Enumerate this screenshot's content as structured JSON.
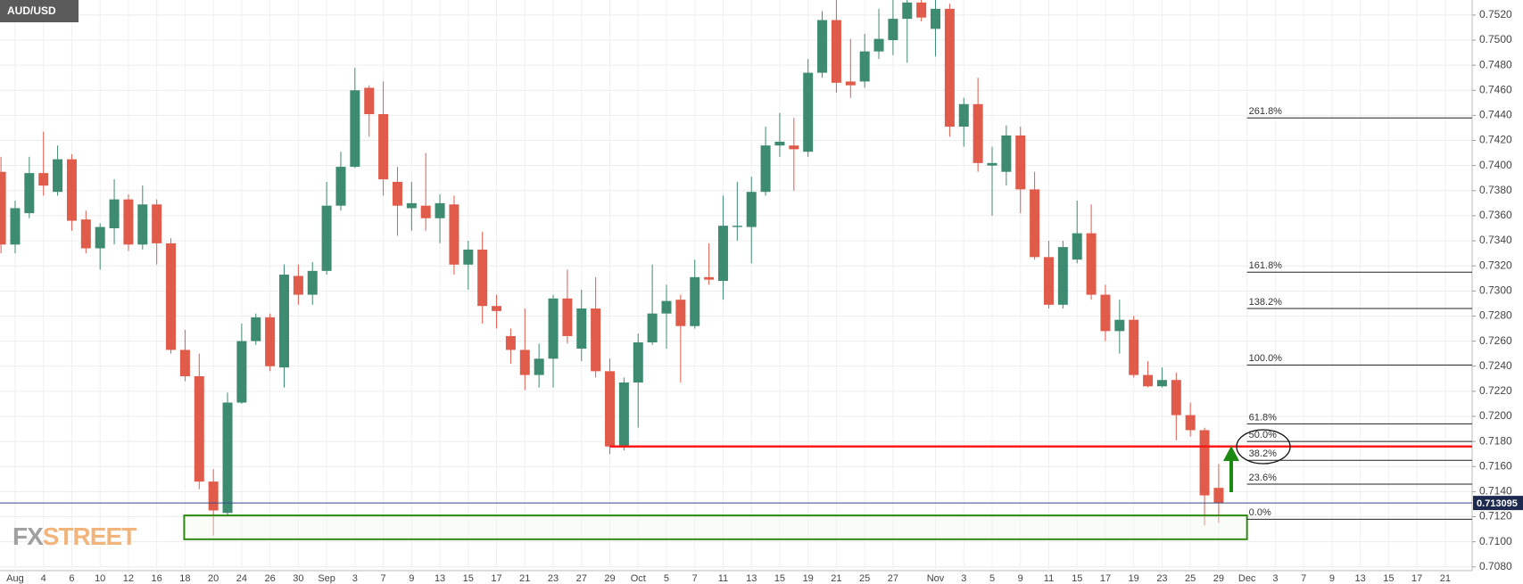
{
  "chart_data": {
    "type": "candlestick",
    "title": "AUD/USD",
    "brand": {
      "fx": "FX",
      "street": "STREET"
    },
    "categories": [
      null,
      "Aug",
      null,
      "4",
      null,
      "6",
      null,
      "10",
      null,
      "12",
      null,
      "16",
      null,
      "18",
      null,
      "20",
      null,
      "24",
      null,
      "26",
      null,
      "30",
      null,
      "Sep",
      null,
      "3",
      null,
      "7",
      null,
      "9",
      null,
      "13",
      null,
      "15",
      null,
      "17",
      null,
      "21",
      null,
      "23",
      null,
      "27",
      null,
      "29",
      null,
      "Oct",
      null,
      "5",
      null,
      "7",
      null,
      "11",
      null,
      "13",
      null,
      "15",
      null,
      "19",
      null,
      "21",
      null,
      "25",
      null,
      "27",
      null,
      null,
      "Nov",
      null,
      "3",
      null,
      "5",
      null,
      "9",
      null,
      "11",
      null,
      "15",
      null,
      "17",
      null,
      "19",
      null,
      "23",
      null,
      "25",
      null,
      "29",
      null,
      "Dec",
      null,
      "3",
      null,
      "7",
      null,
      "9",
      null,
      "13",
      null,
      "15",
      null,
      "17",
      null,
      "21",
      null,
      null
    ],
    "open": [
      0.7395,
      0.7337,
      0.7362,
      0.7394,
      0.7379,
      0.7405,
      0.7357,
      0.7334,
      0.735,
      0.7373,
      0.7337,
      0.7369,
      0.7338,
      0.7253,
      0.7232,
      0.7148,
      0.7123,
      0.7211,
      0.726,
      0.7279,
      0.7239,
      0.7312,
      0.7297,
      0.7316,
      0.7368,
      0.7399,
      0.7462,
      0.7441,
      0.7387,
      0.7366,
      0.7368,
      0.7358,
      0.7369,
      0.7321,
      0.7333,
      0.7288,
      0.7264,
      0.7253,
      0.7233,
      0.7246,
      0.7294,
      0.7254,
      0.7286,
      0.7236,
      0.7176,
      0.7227,
      0.7259,
      0.7282,
      0.7293,
      0.7272,
      0.7311,
      0.7308,
      0.7351,
      0.7351,
      0.7379,
      0.7416,
      0.7416,
      0.7411,
      0.7474,
      0.7516,
      0.7467,
      0.7467,
      0.7491,
      0.75,
      0.7517,
      0.753,
      0.7509,
      0.7525,
      0.7431,
      0.7449,
      0.74,
      0.7395,
      0.7424,
      0.7381,
      0.7327,
      0.7289,
      0.7325,
      0.7346,
      0.7297,
      0.7268,
      0.7277,
      0.7233,
      0.7224,
      0.7229,
      0.7201,
      0.7189,
      0.7143,
      null,
      null,
      null,
      null,
      null,
      null,
      null,
      null,
      null,
      null,
      null,
      null,
      null,
      null,
      null,
      null,
      null,
      null
    ],
    "high": [
      0.7407,
      0.7372,
      0.7407,
      0.7427,
      0.7416,
      0.7409,
      0.7364,
      0.7354,
      0.7389,
      0.7377,
      0.7384,
      0.7373,
      0.7342,
      0.7269,
      0.725,
      0.7158,
      0.7219,
      0.7274,
      0.7282,
      0.7282,
      0.7321,
      0.7321,
      0.7323,
      0.7387,
      0.7411,
      0.7478,
      0.7464,
      0.7467,
      0.7399,
      0.7387,
      0.741,
      0.7377,
      0.7376,
      0.734,
      0.7347,
      0.7297,
      0.727,
      0.7286,
      0.7258,
      0.7297,
      0.7317,
      0.7301,
      0.7311,
      0.7246,
      0.7231,
      0.7266,
      0.7321,
      0.7305,
      0.7297,
      0.7325,
      0.7338,
      0.7376,
      0.7387,
      0.7391,
      0.7431,
      0.7442,
      0.7438,
      0.7485,
      0.7523,
      0.7532,
      0.7501,
      0.7505,
      0.7525,
      0.7532,
      0.7532,
      0.7532,
      0.7532,
      0.7529,
      0.7454,
      0.747,
      0.7415,
      0.7432,
      0.7431,
      0.7395,
      0.734,
      0.734,
      0.7372,
      0.7369,
      0.7305,
      0.7293,
      0.728,
      0.7244,
      0.7239,
      0.7235,
      0.7211,
      0.7191,
      0.7162,
      null,
      null,
      null,
      null,
      null,
      null,
      null,
      null,
      null,
      null,
      null,
      null,
      null,
      null,
      null,
      null,
      null,
      null
    ],
    "low": [
      0.733,
      0.733,
      0.7358,
      0.7376,
      0.7376,
      0.7348,
      0.733,
      0.7317,
      0.7337,
      0.7332,
      0.7333,
      0.7321,
      0.725,
      0.7228,
      0.7142,
      0.7105,
      0.7121,
      0.721,
      0.7257,
      0.7236,
      0.7223,
      0.7289,
      0.7289,
      0.7313,
      0.7364,
      0.7398,
      0.7423,
      0.7376,
      0.7344,
      0.7348,
      0.7348,
      0.7338,
      0.7313,
      0.7301,
      0.7274,
      0.727,
      0.7242,
      0.7221,
      0.7223,
      0.7223,
      0.7258,
      0.7244,
      0.7231,
      0.717,
      0.7173,
      0.7191,
      0.7257,
      0.7254,
      0.7227,
      0.727,
      0.7305,
      0.7293,
      0.734,
      0.7322,
      0.7376,
      0.7407,
      0.738,
      0.7407,
      0.747,
      0.7458,
      0.7454,
      0.7462,
      0.7485,
      0.7488,
      0.7482,
      0.7515,
      0.7487,
      0.7423,
      0.7415,
      0.7395,
      0.736,
      0.7384,
      0.7362,
      0.7325,
      0.7286,
      0.7286,
      0.7322,
      0.7293,
      0.726,
      0.725,
      0.7231,
      0.7223,
      0.7223,
      0.7181,
      0.7184,
      0.7113,
      0.7115,
      null,
      null,
      null,
      null,
      null,
      null,
      null,
      null,
      null,
      null,
      null,
      null,
      null,
      null,
      null,
      null,
      null,
      null
    ],
    "close": [
      0.7337,
      0.7366,
      0.7394,
      0.7384,
      0.7405,
      0.7356,
      0.7334,
      0.7351,
      0.7373,
      0.7337,
      0.7369,
      0.7338,
      0.7253,
      0.7232,
      0.7148,
      0.7125,
      0.7211,
      0.726,
      0.7279,
      0.724,
      0.7313,
      0.7297,
      0.7316,
      0.7368,
      0.7399,
      0.746,
      0.7441,
      0.7389,
      0.7368,
      0.737,
      0.7358,
      0.737,
      0.7321,
      0.7333,
      0.7288,
      0.7284,
      0.7253,
      0.7233,
      0.7246,
      0.7294,
      0.7264,
      0.7286,
      0.7236,
      0.7176,
      0.7227,
      0.7259,
      0.7282,
      0.7292,
      0.7272,
      0.7311,
      0.7309,
      0.7352,
      0.7352,
      0.7379,
      0.7416,
      0.7419,
      0.7413,
      0.7474,
      0.7516,
      0.7466,
      0.7464,
      0.7491,
      0.7501,
      0.7517,
      0.753,
      0.7518,
      0.7525,
      0.7431,
      0.7449,
      0.7402,
      0.7402,
      0.7424,
      0.7381,
      0.7327,
      0.7289,
      0.7335,
      0.7346,
      0.7297,
      0.7268,
      0.7277,
      0.7233,
      0.7224,
      0.7229,
      0.7201,
      0.7189,
      0.7137,
      0.7131,
      null,
      null,
      null,
      null,
      null,
      null,
      null,
      null,
      null,
      null,
      null,
      null,
      null,
      null,
      null,
      null,
      null,
      null
    ],
    "up_color": "#3d8b70",
    "down_color": "#e15b4b",
    "ylim": [
      0.7077,
      0.7532
    ],
    "yticks": [
      {
        "value": 0.708,
        "label": "0.7080"
      },
      {
        "value": 0.71,
        "label": "0.7100"
      },
      {
        "value": 0.712,
        "label": "0.7120"
      },
      {
        "value": 0.714,
        "label": "0.7140"
      },
      {
        "value": 0.716,
        "label": "0.7160"
      },
      {
        "value": 0.718,
        "label": "0.7180"
      },
      {
        "value": 0.72,
        "label": "0.7200"
      },
      {
        "value": 0.722,
        "label": "0.7220"
      },
      {
        "value": 0.724,
        "label": "0.7240"
      },
      {
        "value": 0.726,
        "label": "0.7260"
      },
      {
        "value": 0.728,
        "label": "0.7280"
      },
      {
        "value": 0.73,
        "label": "0.7300"
      },
      {
        "value": 0.732,
        "label": "0.7320"
      },
      {
        "value": 0.734,
        "label": "0.7340"
      },
      {
        "value": 0.736,
        "label": "0.7360"
      },
      {
        "value": 0.738,
        "label": "0.7380"
      },
      {
        "value": 0.74,
        "label": "0.7400"
      },
      {
        "value": 0.742,
        "label": "0.7420"
      },
      {
        "value": 0.744,
        "label": "0.7440"
      },
      {
        "value": 0.746,
        "label": "0.7460"
      },
      {
        "value": 0.748,
        "label": "0.7480"
      },
      {
        "value": 0.75,
        "label": "0.7500"
      },
      {
        "value": 0.752,
        "label": "0.7520"
      }
    ],
    "grid": true,
    "last_price": 0.713095,
    "support": 0.7176,
    "zone": [
      0.7102,
      0.7121
    ],
    "fib_levels": [
      {
        "name": "261.8%",
        "value": 0.7438
      },
      {
        "name": "161.8%",
        "value": 0.7315
      },
      {
        "name": "138.2%",
        "value": 0.7286
      },
      {
        "name": "100.0%",
        "value": 0.7241
      },
      {
        "name": "61.8%",
        "value": 0.7194
      },
      {
        "name": "50.0%",
        "value": 0.718
      },
      {
        "name": "38.2%",
        "value": 0.7165
      },
      {
        "name": "23.6%",
        "value": 0.7146
      },
      {
        "name": "0.0%",
        "value": 0.7118
      }
    ]
  }
}
